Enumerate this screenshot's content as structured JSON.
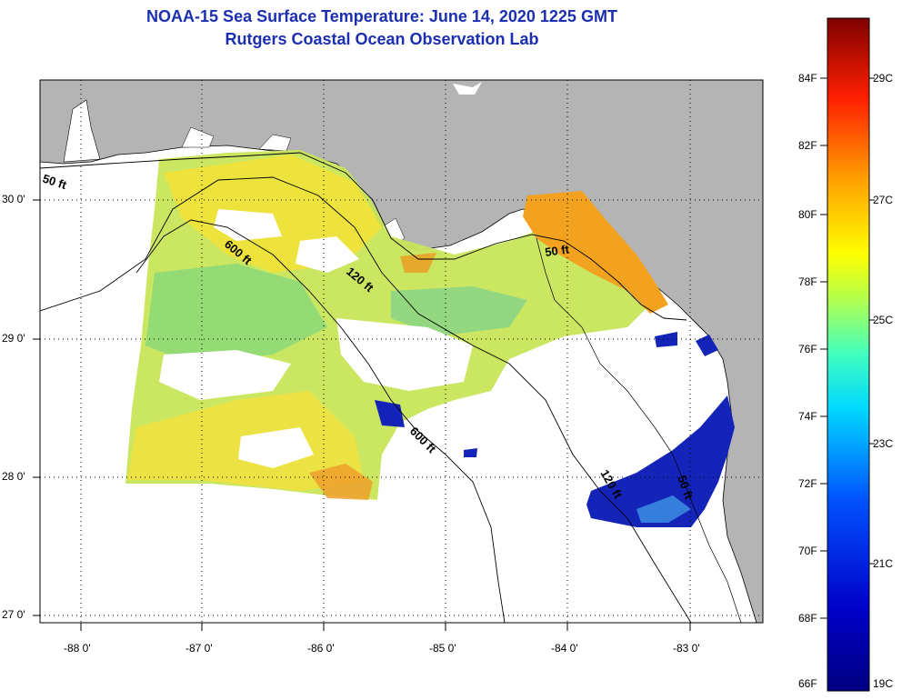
{
  "title": {
    "line1": "NOAA-15 Sea Surface Temperature:  June 14, 2020 1225 GMT",
    "line2": "Rutgers Coastal Ocean Observation Lab"
  },
  "map": {
    "lat_labels": [
      "30 0'",
      "29 0'",
      "28 0'",
      "27 0'"
    ],
    "lon_labels": [
      "-88 0'",
      "-87 0'",
      "-86 0'",
      "-85 0'",
      "-84 0'",
      "-83 0'"
    ],
    "contour_labels": [
      "50 ft",
      "600 ft",
      "120 ft",
      "50 ft",
      "600 ft",
      "120 ft",
      "50 ft"
    ]
  },
  "colorbar": {
    "fahrenheit_labels": [
      "84F",
      "82F",
      "80F",
      "78F",
      "76F",
      "74F",
      "72F",
      "70F",
      "68F",
      "66F"
    ],
    "celsius_labels": [
      "29C",
      "27C",
      "25C",
      "23C",
      "21C",
      "19C"
    ]
  },
  "colors": {
    "land": "#b4b4b4",
    "water_no_data": "#ffffff",
    "title": "#1b2fb0",
    "warm_sst": "#f5e637",
    "hot_sst": "#f2a21e",
    "cool_sst": "#9be06a",
    "cold_sst": "#1020b0"
  }
}
